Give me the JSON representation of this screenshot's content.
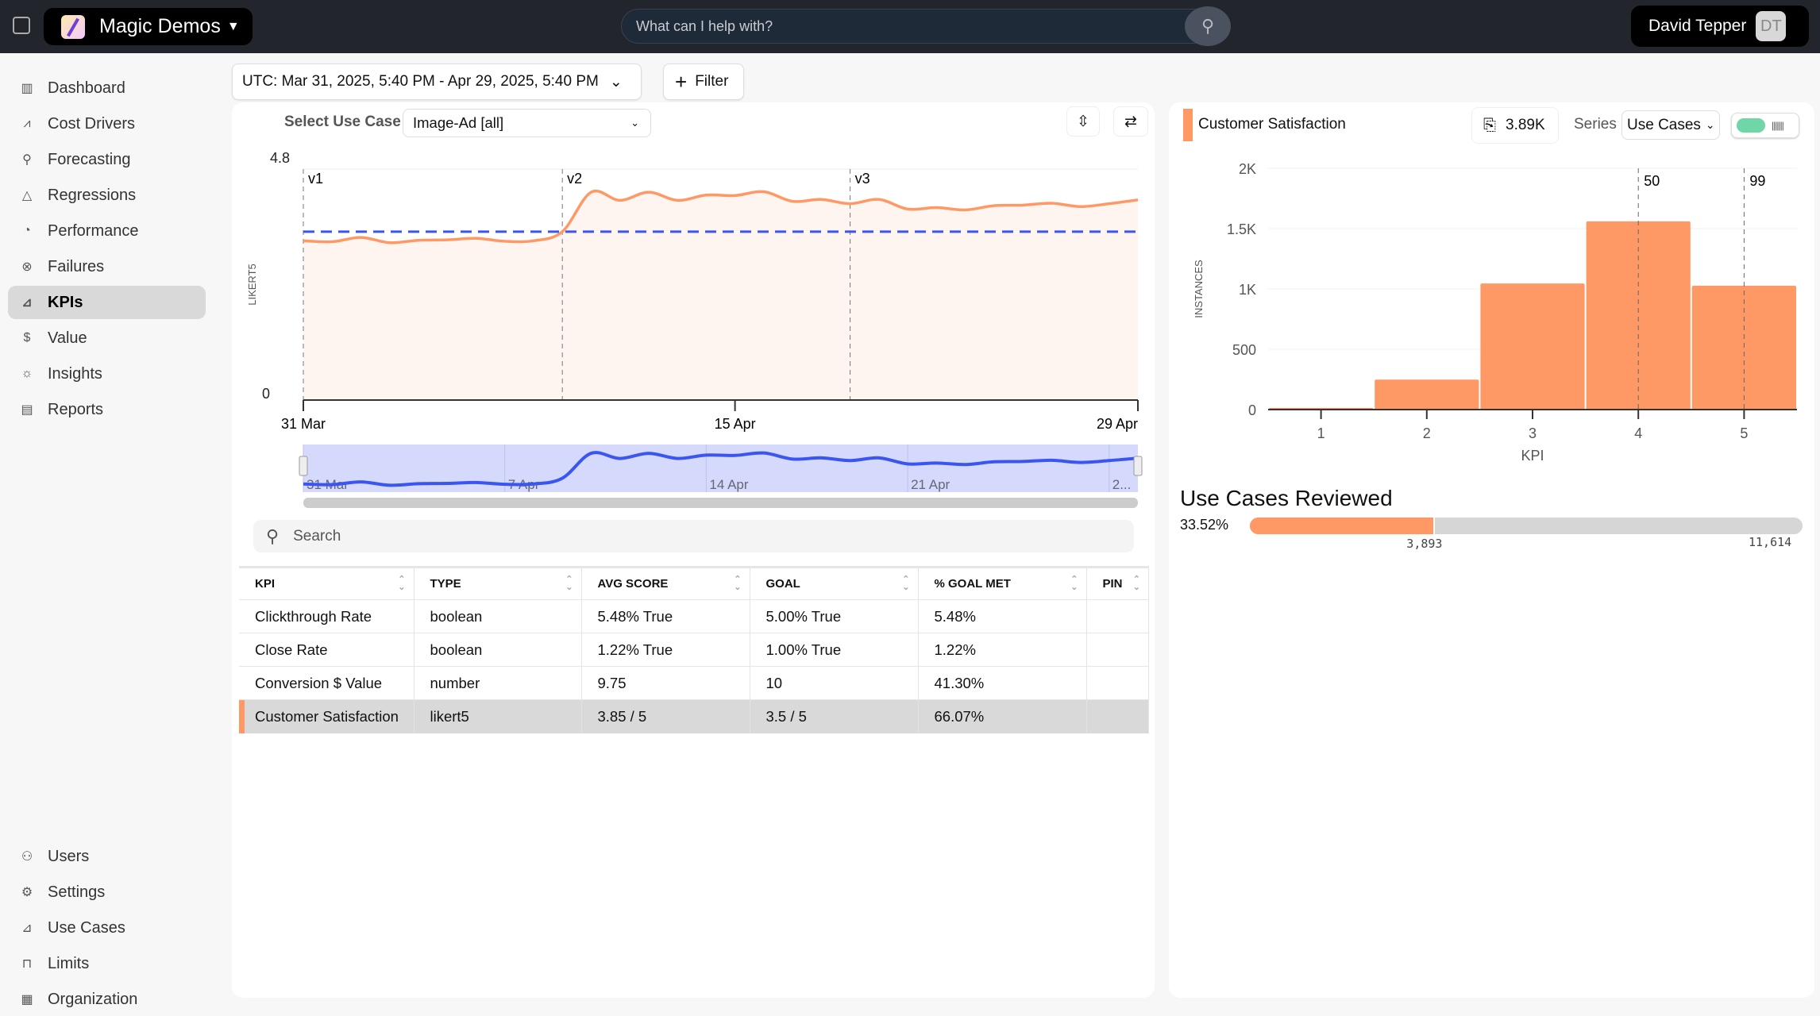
{
  "app": {
    "title": "Magic Demos",
    "search_placeholder": "What can I help with?",
    "user_name": "David Tepper",
    "user_initials": "DT"
  },
  "sidebar": {
    "items": [
      {
        "label": "Dashboard",
        "icon": "bar-chart-icon"
      },
      {
        "label": "Cost Drivers",
        "icon": "line-chart-icon"
      },
      {
        "label": "Forecasting",
        "icon": "telescope-icon"
      },
      {
        "label": "Regressions",
        "icon": "warning-icon"
      },
      {
        "label": "Performance",
        "icon": "gauge-icon"
      },
      {
        "label": "Failures",
        "icon": "x-circle-icon"
      },
      {
        "label": "KPIs",
        "icon": "kpi-icon",
        "active": true
      },
      {
        "label": "Value",
        "icon": "dollar-icon"
      },
      {
        "label": "Insights",
        "icon": "bulb-icon"
      },
      {
        "label": "Reports",
        "icon": "document-icon"
      }
    ],
    "bottom_items": [
      {
        "label": "Users",
        "icon": "users-icon"
      },
      {
        "label": "Settings",
        "icon": "gear-icon"
      },
      {
        "label": "Use Cases",
        "icon": "use-cases-icon"
      },
      {
        "label": "Limits",
        "icon": "lock-icon"
      },
      {
        "label": "Organization",
        "icon": "building-icon"
      }
    ]
  },
  "toolbar": {
    "date_range": "UTC: Mar 31, 2025, 5:40 PM - Apr 29, 2025, 5:40 PM",
    "filter_label": "Filter"
  },
  "left_panel": {
    "use_case_label": "Select Use Case",
    "use_case_value": "Image-Ad [all]",
    "search_placeholder": "Search"
  },
  "table": {
    "columns": [
      "KPI",
      "TYPE",
      "AVG SCORE",
      "GOAL",
      "% GOAL MET",
      "PIN"
    ],
    "rows": [
      [
        "Clickthrough Rate",
        "boolean",
        "5.48% True",
        "5.00% True",
        "5.48%",
        ""
      ],
      [
        "Close Rate",
        "boolean",
        "1.22% True",
        "1.00% True",
        "1.22%",
        ""
      ],
      [
        "Conversion $ Value",
        "number",
        "9.75",
        "10",
        "41.30%",
        ""
      ],
      [
        "Customer Satisfaction",
        "likert5",
        "3.85 / 5",
        "3.5 / 5",
        "66.07%",
        ""
      ]
    ],
    "selected_row": 3
  },
  "right_panel": {
    "title": "Customer Satisfaction",
    "count": "3.89K",
    "series_label": "Series",
    "series_value": "Use Cases",
    "reviewed_title": "Use Cases Reviewed",
    "reviewed_pct": "33.52%",
    "reviewed_count": "3,893",
    "reviewed_total": "11,614",
    "reviewed_fraction": 0.3352
  },
  "colors": {
    "accent": "#fe9966",
    "goal": "#3b55f0",
    "brush": "#d5d9fb"
  },
  "chart_data": [
    {
      "type": "line",
      "ylabel": "LIKERT5",
      "ylim": [
        0,
        4.8
      ],
      "y_ticks": [
        "4.8",
        "0"
      ],
      "x_ticks": [
        "31 Mar",
        "15 Apr",
        "29 Apr"
      ],
      "x_start": "2025-03-31",
      "x_end": "2025-04-29",
      "x": [
        "2025-03-31",
        "2025-04-01",
        "2025-04-02",
        "2025-04-03",
        "2025-04-04",
        "2025-04-05",
        "2025-04-06",
        "2025-04-07",
        "2025-04-08",
        "2025-04-09",
        "2025-04-10",
        "2025-04-11",
        "2025-04-12",
        "2025-04-13",
        "2025-04-14",
        "2025-04-15",
        "2025-04-16",
        "2025-04-17",
        "2025-04-18",
        "2025-04-19",
        "2025-04-20",
        "2025-04-21",
        "2025-04-22",
        "2025-04-23",
        "2025-04-24",
        "2025-04-25",
        "2025-04-26",
        "2025-04-27",
        "2025-04-28",
        "2025-04-29"
      ],
      "values": [
        3.31,
        3.29,
        3.38,
        3.27,
        3.32,
        3.33,
        3.36,
        3.3,
        3.31,
        3.5,
        4.32,
        4.15,
        4.32,
        4.15,
        4.26,
        4.25,
        4.33,
        4.13,
        4.17,
        4.08,
        4.17,
        3.97,
        4.0,
        3.95,
        4.04,
        4.05,
        4.09,
        4.02,
        4.08,
        4.16
      ],
      "goal": 3.5,
      "annotations": [
        {
          "label": "v1",
          "x": "2025-03-31"
        },
        {
          "label": "v2",
          "x": "2025-04-09"
        },
        {
          "label": "v3",
          "x": "2025-04-19"
        }
      ],
      "brush_ticks": [
        {
          "label": "31 Mar",
          "x": "2025-03-31"
        },
        {
          "label": "7 Apr",
          "x": "2025-04-07"
        },
        {
          "label": "14 Apr",
          "x": "2025-04-14"
        },
        {
          "label": "21 Apr",
          "x": "2025-04-21"
        },
        {
          "label": "2...",
          "x": "2025-04-28"
        }
      ]
    },
    {
      "type": "bar",
      "xlabel": "KPI",
      "ylabel": "INSTANCES",
      "categories": [
        "1",
        "2",
        "3",
        "4",
        "5"
      ],
      "values": [
        14,
        248,
        1045,
        1560,
        1026
      ],
      "ylim": [
        0,
        2000
      ],
      "y_ticks": [
        "0",
        "500",
        "1K",
        "1.5K",
        "2K"
      ],
      "y_tick_values": [
        0,
        500,
        1000,
        1500,
        2000
      ],
      "percentile_lines": [
        {
          "label": "50",
          "x": 4
        },
        {
          "label": "99",
          "x": 5
        }
      ],
      "grid": true
    }
  ]
}
